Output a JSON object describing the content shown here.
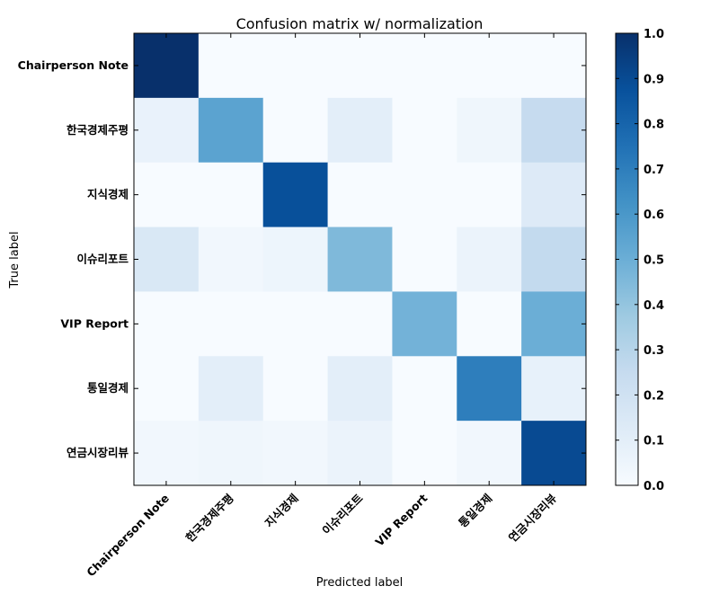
{
  "chart_data": {
    "type": "heatmap",
    "title": "Confusion matrix w/ normalization",
    "xlabel": "Predicted label",
    "ylabel": "True label",
    "categories": [
      "Chairperson Note",
      "한국경제주평",
      "지식경제",
      "이슈리포트",
      "VIP Report",
      "통일경제",
      "연금시장리뷰"
    ],
    "matrix": [
      [
        1.0,
        0.0,
        0.0,
        0.0,
        0.0,
        0.0,
        0.0
      ],
      [
        0.07,
        0.55,
        0.0,
        0.1,
        0.0,
        0.04,
        0.25
      ],
      [
        0.0,
        0.0,
        0.88,
        0.0,
        0.0,
        0.0,
        0.13
      ],
      [
        0.15,
        0.03,
        0.05,
        0.45,
        0.0,
        0.06,
        0.26
      ],
      [
        0.0,
        0.0,
        0.0,
        0.0,
        0.48,
        0.0,
        0.5
      ],
      [
        0.0,
        0.1,
        0.0,
        0.1,
        0.0,
        0.7,
        0.08
      ],
      [
        0.03,
        0.04,
        0.03,
        0.06,
        0.0,
        0.03,
        0.9
      ]
    ],
    "zlim": [
      0.0,
      1.0
    ],
    "colormap": "Blues",
    "colorbar_ticks": [
      "0.0",
      "0.1",
      "0.2",
      "0.3",
      "0.4",
      "0.5",
      "0.6",
      "0.7",
      "0.8",
      "0.9",
      "1.0"
    ],
    "colorbar_tick_values": [
      0.0,
      0.1,
      0.2,
      0.3,
      0.4,
      0.5,
      0.6,
      0.7,
      0.8,
      0.9,
      1.0
    ]
  }
}
